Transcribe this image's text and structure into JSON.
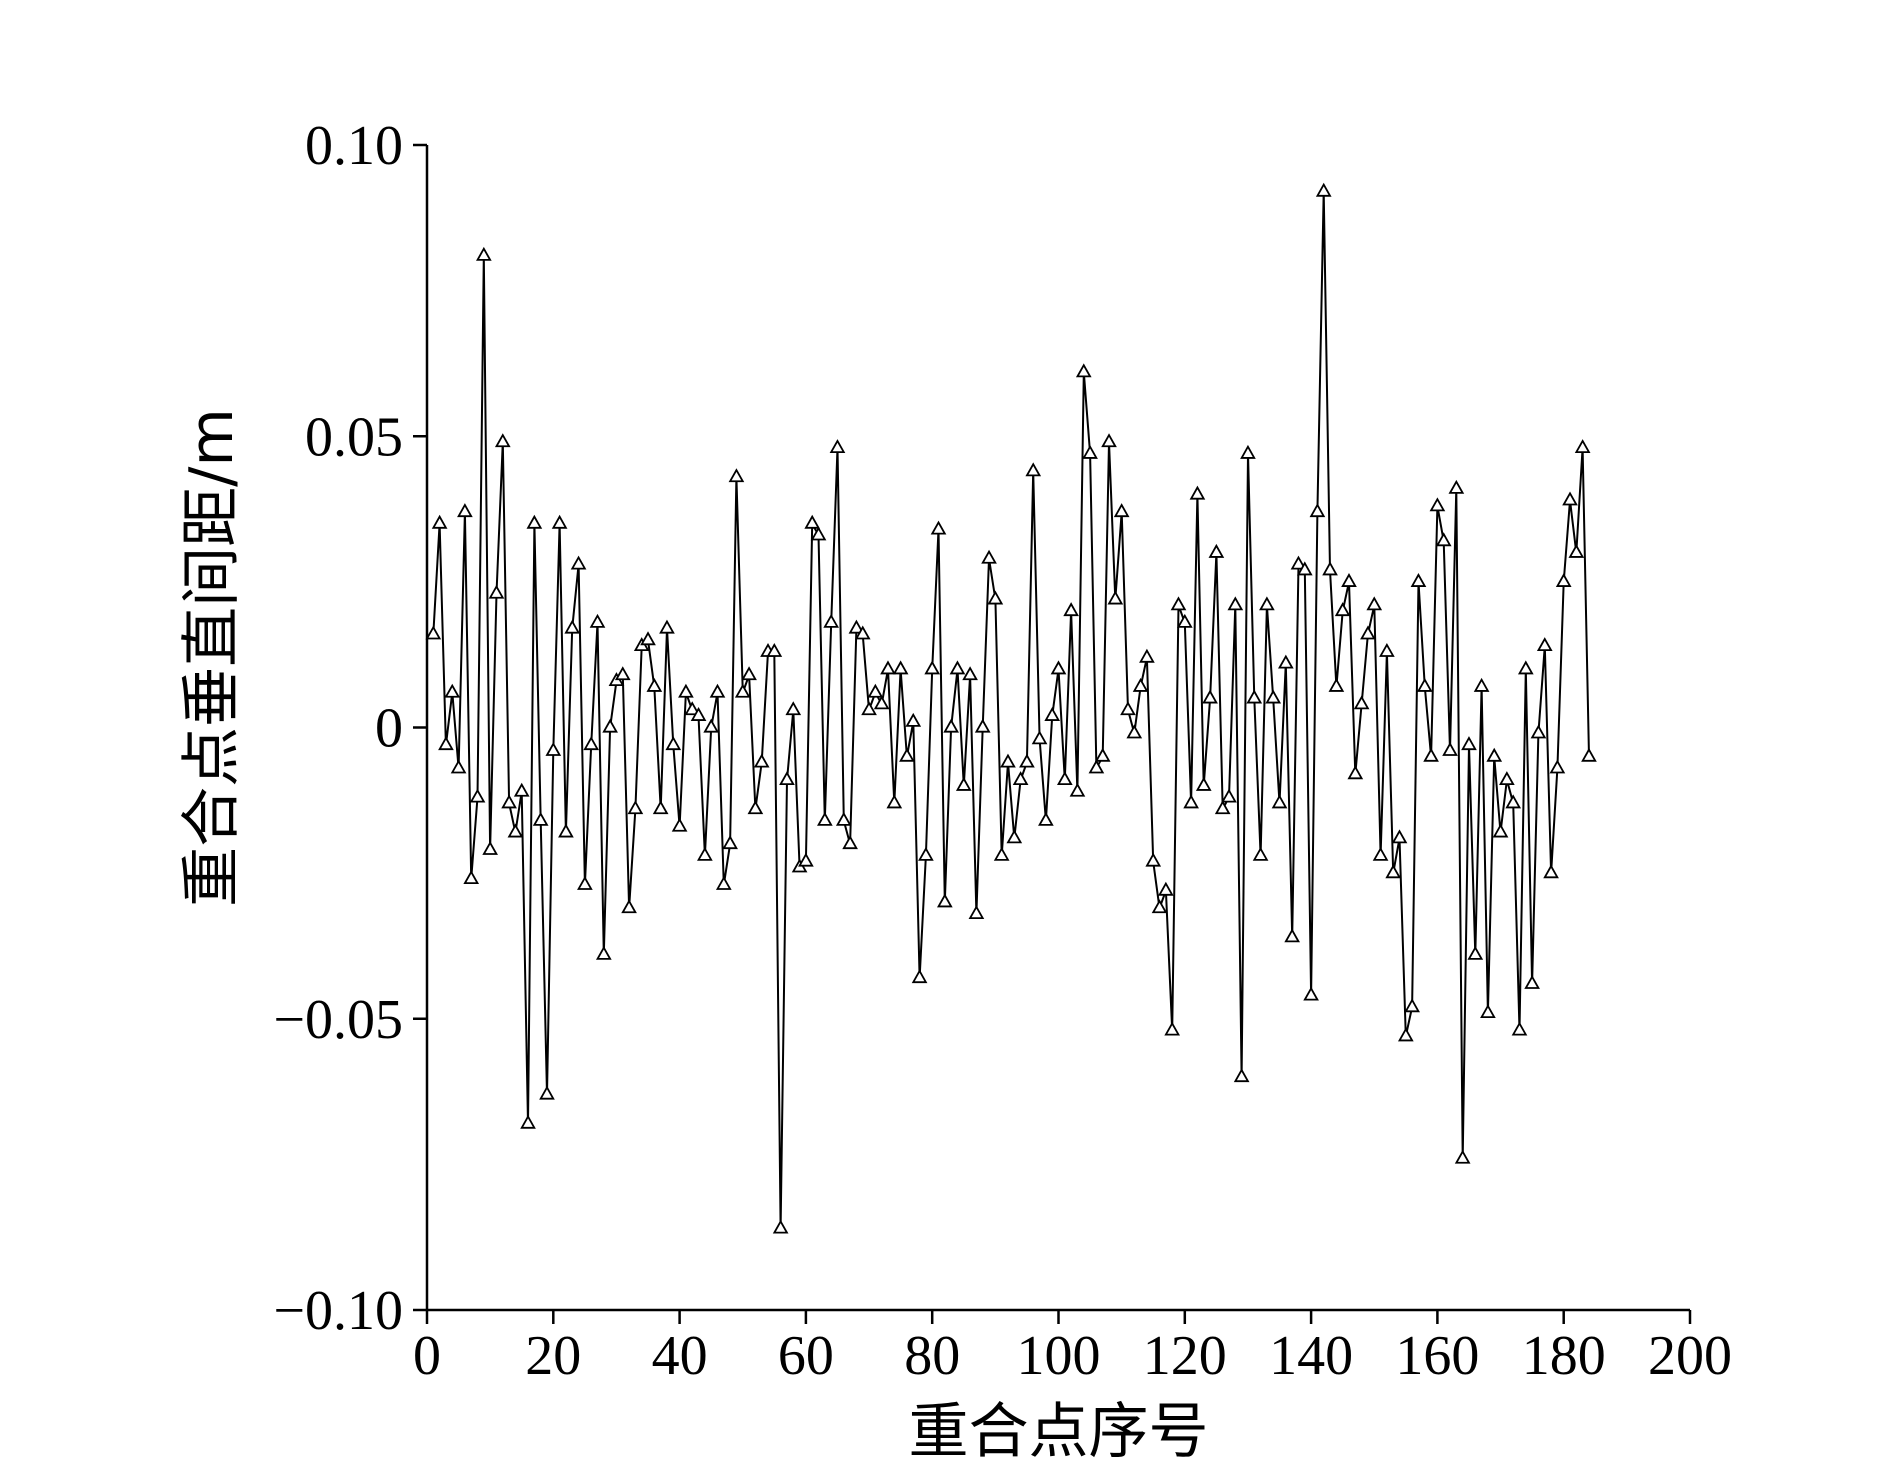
{
  "chart_data": {
    "type": "line",
    "title": "",
    "xlabel": "重合点序号",
    "ylabel": "重合点垂直间距/m",
    "xlim": [
      0,
      200
    ],
    "ylim": [
      -0.1,
      0.1
    ],
    "x_ticks": [
      0,
      20,
      40,
      60,
      80,
      100,
      120,
      140,
      160,
      180,
      200
    ],
    "x_tick_labels": [
      "0",
      "20",
      "40",
      "60",
      "80",
      "100",
      "120",
      "140",
      "160",
      "180",
      "200"
    ],
    "y_ticks": [
      0.1,
      0.05,
      0,
      -0.05,
      -0.1
    ],
    "y_tick_labels": [
      "0.10",
      "0.05",
      "0",
      "−0.05",
      "−0.10"
    ],
    "grid": false,
    "legend": "none",
    "marker": "triangle-open",
    "colors": {
      "line": "#000000",
      "marker_fill": "#ffffff"
    },
    "series": [
      {
        "values": [
          0.016,
          0.035,
          -0.003,
          0.006,
          -0.007,
          0.037,
          -0.026,
          -0.012,
          0.081,
          -0.021,
          0.023,
          0.049,
          -0.013,
          -0.018,
          -0.011,
          -0.068,
          0.035,
          -0.016,
          -0.063,
          -0.004,
          0.035,
          -0.018,
          0.017,
          0.028,
          -0.027,
          -0.003,
          0.018,
          -0.039,
          0.0,
          0.008,
          0.009,
          -0.031,
          -0.014,
          0.014,
          0.015,
          0.007,
          -0.014,
          0.017,
          -0.003,
          -0.017,
          0.006,
          0.003,
          0.002,
          -0.022,
          0.0,
          0.006,
          -0.027,
          -0.02,
          0.043,
          0.006,
          0.009,
          -0.014,
          -0.006,
          0.013,
          0.013,
          -0.086,
          -0.009,
          0.003,
          -0.024,
          -0.023,
          0.035,
          0.033,
          -0.016,
          0.018,
          0.048,
          -0.016,
          -0.02,
          0.017,
          0.016,
          0.003,
          0.006,
          0.004,
          0.01,
          -0.013,
          0.01,
          -0.005,
          0.001,
          -0.043,
          -0.022,
          0.01,
          0.034,
          -0.03,
          0.0,
          0.01,
          -0.01,
          0.009,
          -0.032,
          0.0,
          0.029,
          0.022,
          -0.022,
          -0.006,
          -0.019,
          -0.009,
          -0.006,
          0.044,
          -0.002,
          -0.016,
          0.002,
          0.01,
          -0.009,
          0.02,
          -0.011,
          0.061,
          0.047,
          -0.007,
          -0.005,
          0.049,
          0.022,
          0.037,
          0.003,
          -0.001,
          0.007,
          0.012,
          -0.023,
          -0.031,
          -0.028,
          -0.052,
          0.021,
          0.018,
          -0.013,
          0.04,
          -0.01,
          0.005,
          0.03,
          -0.014,
          -0.012,
          0.021,
          -0.06,
          0.047,
          0.005,
          -0.022,
          0.021,
          0.005,
          -0.013,
          0.011,
          -0.036,
          0.028,
          0.027,
          -0.046,
          0.037,
          0.092,
          0.027,
          0.007,
          0.02,
          0.025,
          -0.008,
          0.004,
          0.016,
          0.021,
          -0.022,
          0.013,
          -0.025,
          -0.019,
          -0.053,
          -0.048,
          0.025,
          0.007,
          -0.005,
          0.038,
          0.032,
          -0.004,
          0.041,
          -0.074,
          -0.003,
          -0.039,
          0.007,
          -0.049,
          -0.005,
          -0.018,
          -0.009,
          -0.013,
          -0.052,
          0.01,
          -0.044,
          -0.001,
          0.014,
          -0.025,
          -0.007,
          0.025,
          0.039,
          0.03,
          0.048,
          -0.005
        ]
      }
    ]
  }
}
